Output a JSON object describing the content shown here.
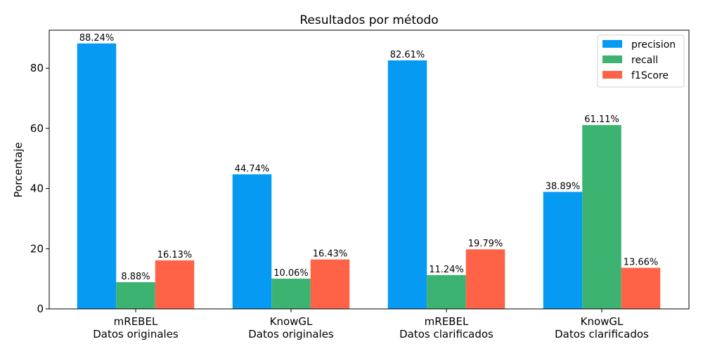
{
  "chart_data": {
    "type": "bar",
    "title": "Resultados por método",
    "xlabel": "",
    "ylabel": "Porcentaje",
    "categories": [
      [
        "mREBEL",
        "Datos originales"
      ],
      [
        "KnowGL",
        "Datos originales"
      ],
      [
        "mREBEL",
        "Datos clarificados"
      ],
      [
        "KnowGL",
        "Datos clarificados"
      ]
    ],
    "series": [
      {
        "name": "precision",
        "color": "#069AF3",
        "values": [
          88.24,
          44.74,
          82.61,
          38.89
        ],
        "labels": [
          "88.24%",
          "44.74%",
          "82.61%",
          "38.89%"
        ]
      },
      {
        "name": "recall",
        "color": "#3CB371",
        "values": [
          8.88,
          10.06,
          11.24,
          61.11
        ],
        "labels": [
          "8.88%",
          "10.06%",
          "11.24%",
          "61.11%"
        ]
      },
      {
        "name": "f1Score",
        "color": "#FF6347",
        "values": [
          16.13,
          16.43,
          19.79,
          13.66
        ],
        "labels": [
          "16.13%",
          "16.43%",
          "19.79%",
          "13.66%"
        ]
      }
    ],
    "ylim": [
      0,
      92.65
    ],
    "yticks": [
      0,
      20,
      40,
      60,
      80
    ],
    "ytick_labels": [
      "0",
      "20",
      "40",
      "60",
      "80"
    ],
    "grid": false,
    "legend_position": "top-right"
  }
}
